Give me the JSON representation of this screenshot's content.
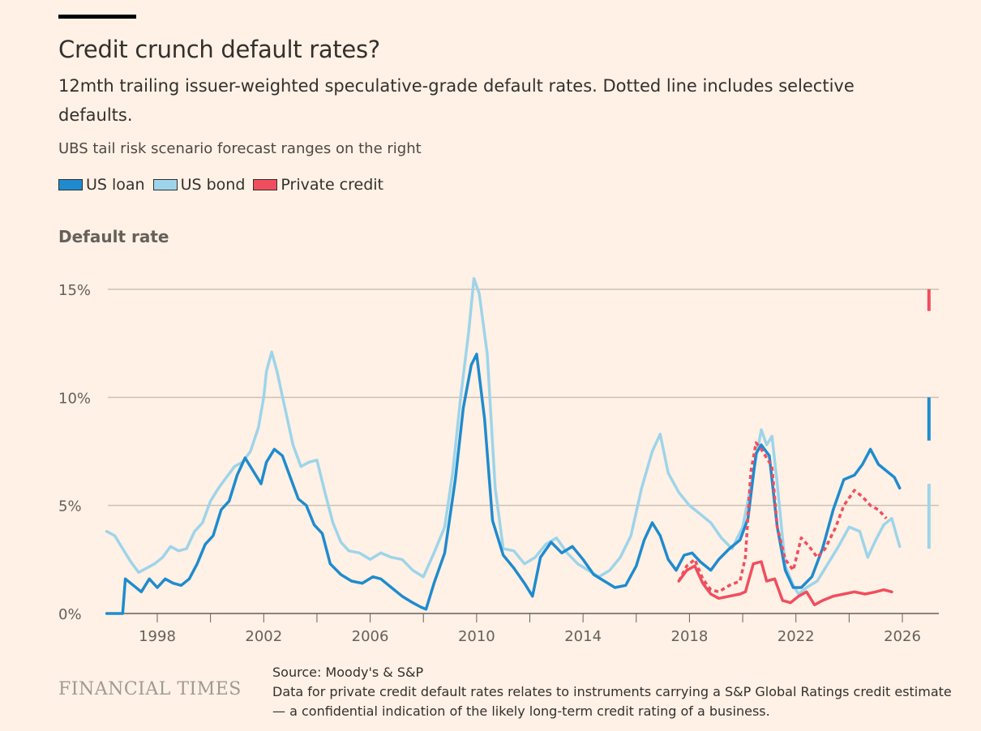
{
  "header": {
    "title": "Credit crunch default rates?",
    "subtitle": "12mth trailing issuer-weighted speculative-grade default rates. Dotted line includes selective defaults.",
    "note": "UBS tail risk scenario forecast ranges on the right"
  },
  "legend": [
    {
      "label": "US loan",
      "color": "#1f8bce"
    },
    {
      "label": "US bond",
      "color": "#9dd4ea"
    },
    {
      "label": "Private credit",
      "color": "#f04e5e"
    }
  ],
  "footer": {
    "brand": "FINANCIAL TIMES",
    "source": "Source: Moody's & S&P",
    "footnote": "Data for private credit default rates relates to instruments carrying a S&P Global Ratings credit estimate — a confidential indication of the likely long-term credit rating of a business."
  },
  "chart_data": {
    "type": "line",
    "title": "Credit crunch default rates?",
    "ylabel": "Default rate",
    "xlabel": "",
    "xlim": [
      1996.1,
      2027.4
    ],
    "ylim": [
      0,
      15
    ],
    "x_ticks": [
      1998,
      2002,
      2006,
      2010,
      2014,
      2018,
      2022,
      2026
    ],
    "x_tick_labels": [
      "1998",
      "2002",
      "2006",
      "2010",
      "2014",
      "2018",
      "2022",
      "2026"
    ],
    "y_ticks": [
      0,
      5,
      10,
      15
    ],
    "y_tick_labels": [
      "0%",
      "5%",
      "10%",
      "15%"
    ],
    "grid": "horizontal",
    "legend_position": "top-left",
    "series": [
      {
        "name": "US bond",
        "color": "#9dd4ea",
        "style": "solid",
        "points": [
          [
            1996.1,
            3.8
          ],
          [
            1996.4,
            3.6
          ],
          [
            1996.7,
            3.0
          ],
          [
            1997.0,
            2.4
          ],
          [
            1997.3,
            1.9
          ],
          [
            1997.6,
            2.1
          ],
          [
            1997.9,
            2.3
          ],
          [
            1998.2,
            2.6
          ],
          [
            1998.5,
            3.1
          ],
          [
            1998.8,
            2.9
          ],
          [
            1999.1,
            3.0
          ],
          [
            1999.4,
            3.8
          ],
          [
            1999.7,
            4.2
          ],
          [
            2000.0,
            5.2
          ],
          [
            2000.3,
            5.8
          ],
          [
            2000.6,
            6.3
          ],
          [
            2000.9,
            6.8
          ],
          [
            2001.2,
            7.0
          ],
          [
            2001.5,
            7.5
          ],
          [
            2001.8,
            8.6
          ],
          [
            2002.0,
            10.0
          ],
          [
            2002.1,
            11.2
          ],
          [
            2002.3,
            12.1
          ],
          [
            2002.5,
            11.2
          ],
          [
            2002.8,
            9.5
          ],
          [
            2003.1,
            7.8
          ],
          [
            2003.4,
            6.8
          ],
          [
            2003.7,
            7.0
          ],
          [
            2004.0,
            7.1
          ],
          [
            2004.3,
            5.6
          ],
          [
            2004.6,
            4.2
          ],
          [
            2004.9,
            3.3
          ],
          [
            2005.2,
            2.9
          ],
          [
            2005.6,
            2.8
          ],
          [
            2006.0,
            2.5
          ],
          [
            2006.4,
            2.8
          ],
          [
            2006.8,
            2.6
          ],
          [
            2007.2,
            2.5
          ],
          [
            2007.6,
            2.0
          ],
          [
            2008.0,
            1.7
          ],
          [
            2008.4,
            2.8
          ],
          [
            2008.8,
            4.0
          ],
          [
            2009.1,
            6.5
          ],
          [
            2009.4,
            10.0
          ],
          [
            2009.7,
            13.0
          ],
          [
            2009.9,
            15.5
          ],
          [
            2010.1,
            14.8
          ],
          [
            2010.4,
            12.0
          ],
          [
            2010.7,
            5.8
          ],
          [
            2011.0,
            3.0
          ],
          [
            2011.4,
            2.9
          ],
          [
            2011.8,
            2.3
          ],
          [
            2012.2,
            2.6
          ],
          [
            2012.6,
            3.2
          ],
          [
            2013.0,
            3.5
          ],
          [
            2013.4,
            2.8
          ],
          [
            2013.8,
            2.3
          ],
          [
            2014.2,
            2.0
          ],
          [
            2014.6,
            1.7
          ],
          [
            2015.0,
            2.0
          ],
          [
            2015.4,
            2.6
          ],
          [
            2015.8,
            3.6
          ],
          [
            2016.2,
            5.8
          ],
          [
            2016.6,
            7.5
          ],
          [
            2016.9,
            8.3
          ],
          [
            2017.2,
            6.5
          ],
          [
            2017.6,
            5.6
          ],
          [
            2018.0,
            5.0
          ],
          [
            2018.4,
            4.6
          ],
          [
            2018.8,
            4.2
          ],
          [
            2019.2,
            3.5
          ],
          [
            2019.6,
            3.0
          ],
          [
            2020.0,
            4.0
          ],
          [
            2020.4,
            6.5
          ],
          [
            2020.7,
            8.5
          ],
          [
            2020.9,
            7.8
          ],
          [
            2021.1,
            8.2
          ],
          [
            2021.3,
            6.0
          ],
          [
            2021.6,
            2.2
          ],
          [
            2021.9,
            1.3
          ],
          [
            2022.1,
            0.9
          ],
          [
            2022.4,
            1.2
          ],
          [
            2022.8,
            1.5
          ],
          [
            2023.2,
            2.3
          ],
          [
            2023.6,
            3.1
          ],
          [
            2024.0,
            4.0
          ],
          [
            2024.4,
            3.8
          ],
          [
            2024.7,
            2.6
          ],
          [
            2025.0,
            3.4
          ],
          [
            2025.3,
            4.1
          ],
          [
            2025.6,
            4.4
          ],
          [
            2025.9,
            3.1
          ]
        ]
      },
      {
        "name": "US loan",
        "color": "#1f8bce",
        "style": "solid",
        "points": [
          [
            1996.1,
            0.0
          ],
          [
            1996.7,
            0.0
          ],
          [
            1996.8,
            1.6
          ],
          [
            1997.1,
            1.3
          ],
          [
            1997.4,
            1.0
          ],
          [
            1997.7,
            1.6
          ],
          [
            1998.0,
            1.2
          ],
          [
            1998.3,
            1.6
          ],
          [
            1998.6,
            1.4
          ],
          [
            1998.9,
            1.3
          ],
          [
            1999.2,
            1.6
          ],
          [
            1999.5,
            2.3
          ],
          [
            1999.8,
            3.2
          ],
          [
            2000.1,
            3.6
          ],
          [
            2000.4,
            4.8
          ],
          [
            2000.7,
            5.2
          ],
          [
            2001.0,
            6.4
          ],
          [
            2001.3,
            7.2
          ],
          [
            2001.6,
            6.6
          ],
          [
            2001.9,
            6.0
          ],
          [
            2002.1,
            7.0
          ],
          [
            2002.4,
            7.6
          ],
          [
            2002.7,
            7.3
          ],
          [
            2003.0,
            6.3
          ],
          [
            2003.3,
            5.3
          ],
          [
            2003.6,
            5.0
          ],
          [
            2003.9,
            4.1
          ],
          [
            2004.2,
            3.7
          ],
          [
            2004.5,
            2.3
          ],
          [
            2004.9,
            1.8
          ],
          [
            2005.3,
            1.5
          ],
          [
            2005.7,
            1.4
          ],
          [
            2006.1,
            1.7
          ],
          [
            2006.4,
            1.6
          ],
          [
            2006.8,
            1.2
          ],
          [
            2007.2,
            0.8
          ],
          [
            2007.6,
            0.5
          ],
          [
            2007.9,
            0.3
          ],
          [
            2008.1,
            0.2
          ],
          [
            2008.4,
            1.4
          ],
          [
            2008.8,
            2.8
          ],
          [
            2009.2,
            6.2
          ],
          [
            2009.5,
            9.5
          ],
          [
            2009.8,
            11.5
          ],
          [
            2010.0,
            12.0
          ],
          [
            2010.3,
            9.0
          ],
          [
            2010.6,
            4.3
          ],
          [
            2011.0,
            2.7
          ],
          [
            2011.4,
            2.1
          ],
          [
            2011.8,
            1.4
          ],
          [
            2012.1,
            0.8
          ],
          [
            2012.4,
            2.6
          ],
          [
            2012.8,
            3.3
          ],
          [
            2013.2,
            2.8
          ],
          [
            2013.6,
            3.1
          ],
          [
            2014.0,
            2.5
          ],
          [
            2014.4,
            1.8
          ],
          [
            2014.8,
            1.5
          ],
          [
            2015.2,
            1.2
          ],
          [
            2015.6,
            1.3
          ],
          [
            2016.0,
            2.2
          ],
          [
            2016.3,
            3.4
          ],
          [
            2016.6,
            4.2
          ],
          [
            2016.9,
            3.6
          ],
          [
            2017.2,
            2.5
          ],
          [
            2017.5,
            2.0
          ],
          [
            2017.8,
            2.7
          ],
          [
            2018.1,
            2.8
          ],
          [
            2018.4,
            2.4
          ],
          [
            2018.8,
            2.0
          ],
          [
            2019.1,
            2.5
          ],
          [
            2019.5,
            3.0
          ],
          [
            2019.9,
            3.4
          ],
          [
            2020.2,
            4.4
          ],
          [
            2020.5,
            7.4
          ],
          [
            2020.7,
            7.8
          ],
          [
            2021.0,
            7.3
          ],
          [
            2021.3,
            4.0
          ],
          [
            2021.6,
            2.0
          ],
          [
            2021.9,
            1.2
          ],
          [
            2022.2,
            1.2
          ],
          [
            2022.6,
            1.7
          ],
          [
            2023.0,
            3.0
          ],
          [
            2023.4,
            4.8
          ],
          [
            2023.8,
            6.2
          ],
          [
            2024.2,
            6.4
          ],
          [
            2024.5,
            6.9
          ],
          [
            2024.8,
            7.6
          ],
          [
            2025.1,
            6.9
          ],
          [
            2025.4,
            6.6
          ],
          [
            2025.7,
            6.3
          ],
          [
            2025.9,
            5.8
          ]
        ]
      },
      {
        "name": "Private credit (incl. selective defaults)",
        "color": "#f04e5e",
        "style": "dotted",
        "points": [
          [
            2017.6,
            1.5
          ],
          [
            2017.9,
            2.2
          ],
          [
            2018.2,
            2.5
          ],
          [
            2018.5,
            1.6
          ],
          [
            2018.8,
            1.1
          ],
          [
            2019.1,
            1.0
          ],
          [
            2019.5,
            1.3
          ],
          [
            2019.9,
            1.5
          ],
          [
            2020.1,
            2.6
          ],
          [
            2020.3,
            6.5
          ],
          [
            2020.5,
            7.9
          ],
          [
            2020.7,
            7.6
          ],
          [
            2020.9,
            7.2
          ],
          [
            2021.1,
            6.8
          ],
          [
            2021.3,
            4.0
          ],
          [
            2021.6,
            2.5
          ],
          [
            2021.9,
            2.0
          ],
          [
            2022.2,
            3.5
          ],
          [
            2022.5,
            3.1
          ],
          [
            2022.8,
            2.6
          ],
          [
            2023.1,
            3.0
          ],
          [
            2023.5,
            4.0
          ],
          [
            2023.8,
            5.0
          ],
          [
            2024.2,
            5.7
          ],
          [
            2024.5,
            5.4
          ],
          [
            2024.8,
            5.0
          ],
          [
            2025.1,
            4.8
          ],
          [
            2025.4,
            4.4
          ]
        ]
      },
      {
        "name": "Private credit",
        "color": "#f04e5e",
        "style": "solid",
        "points": [
          [
            2017.6,
            1.5
          ],
          [
            2017.9,
            2.0
          ],
          [
            2018.2,
            2.2
          ],
          [
            2018.5,
            1.4
          ],
          [
            2018.8,
            0.9
          ],
          [
            2019.1,
            0.7
          ],
          [
            2019.5,
            0.8
          ],
          [
            2019.9,
            0.9
          ],
          [
            2020.1,
            1.0
          ],
          [
            2020.4,
            2.3
          ],
          [
            2020.7,
            2.4
          ],
          [
            2020.9,
            1.5
          ],
          [
            2021.2,
            1.6
          ],
          [
            2021.5,
            0.6
          ],
          [
            2021.8,
            0.5
          ],
          [
            2022.1,
            0.8
          ],
          [
            2022.4,
            1.0
          ],
          [
            2022.7,
            0.4
          ],
          [
            2023.0,
            0.6
          ],
          [
            2023.4,
            0.8
          ],
          [
            2023.8,
            0.9
          ],
          [
            2024.2,
            1.0
          ],
          [
            2024.6,
            0.9
          ],
          [
            2025.0,
            1.0
          ],
          [
            2025.3,
            1.1
          ],
          [
            2025.6,
            1.0
          ]
        ]
      }
    ],
    "forecast_ranges": [
      {
        "name": "Private credit",
        "color": "#f04e5e",
        "range": [
          14,
          15
        ]
      },
      {
        "name": "US loan",
        "color": "#1f8bce",
        "range": [
          8,
          10
        ]
      },
      {
        "name": "US bond",
        "color": "#9dd4ea",
        "range": [
          3,
          6
        ]
      }
    ],
    "forecast_x": 2027.0
  }
}
